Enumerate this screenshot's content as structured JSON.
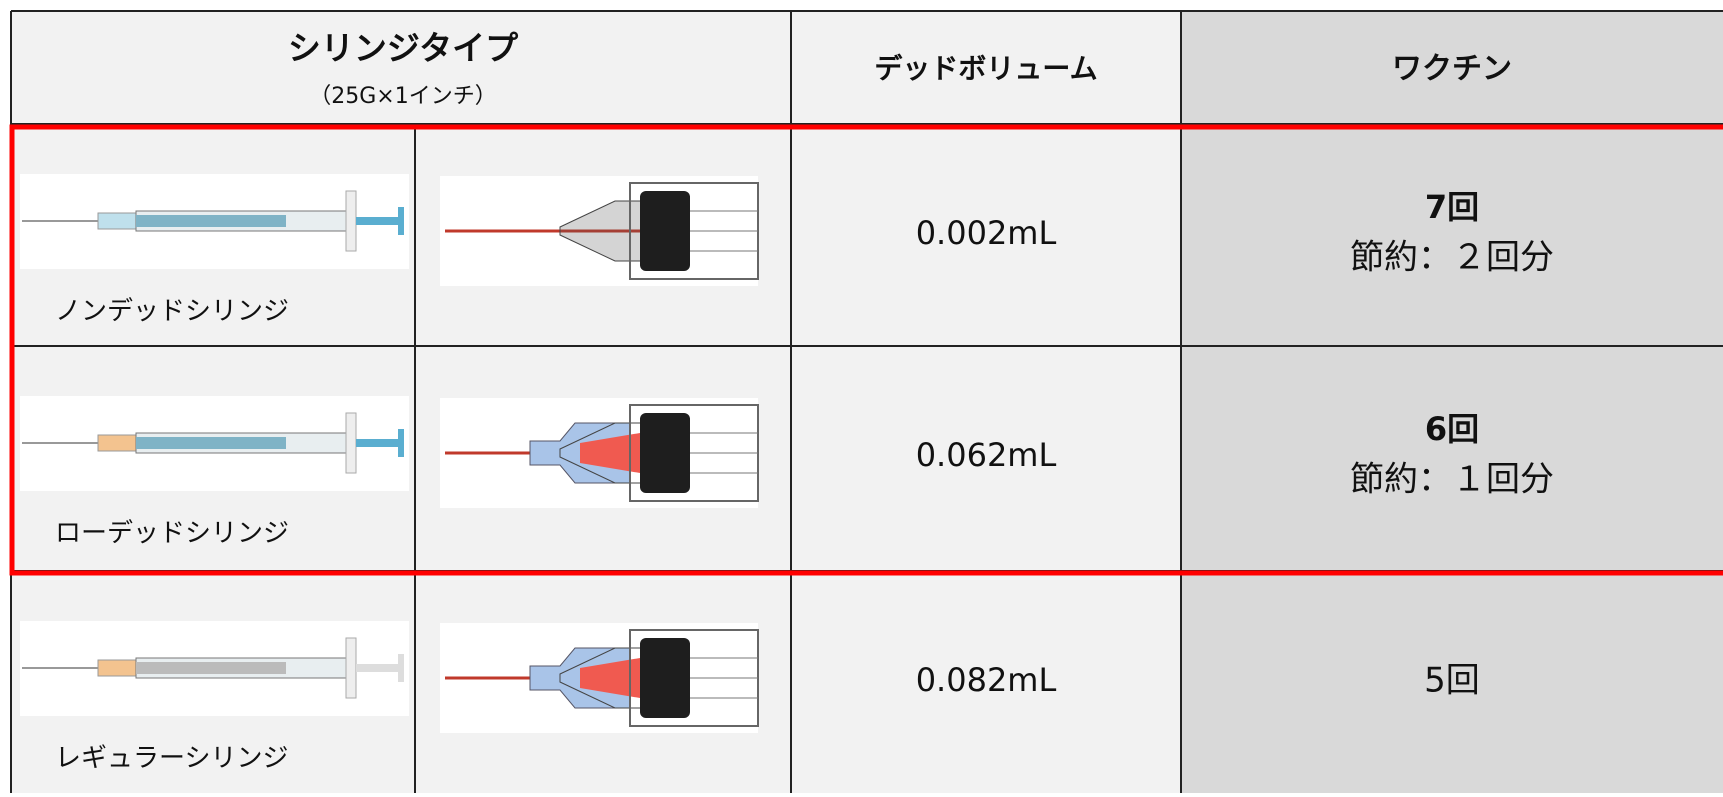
{
  "header": {
    "title": "シリンジタイプ",
    "subtitle": "（25G×1インチ）",
    "dead_volume": "デッドボリューム",
    "vaccine": "ワクチン"
  },
  "rows": [
    {
      "name": "ノンデッドシリンジ",
      "dead_volume": "0.002mL",
      "doses": "7回",
      "saving": "節約：２回分"
    },
    {
      "name": "ローデッドシリンジ",
      "dead_volume": "0.062mL",
      "doses": "6回",
      "saving": "節約：１回分"
    },
    {
      "name": "レギュラーシリンジ",
      "dead_volume": "0.082mL",
      "doses": "5回"
    }
  ]
}
